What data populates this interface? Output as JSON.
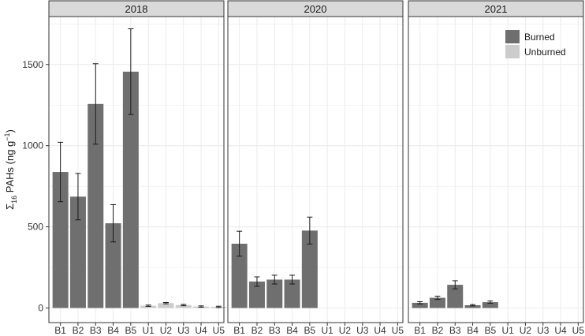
{
  "chart_data": {
    "type": "bar",
    "facets": [
      "2018",
      "2020",
      "2021"
    ],
    "categories": [
      "B1",
      "B2",
      "B3",
      "B4",
      "B5",
      "U1",
      "U2",
      "U3",
      "U4",
      "U5"
    ],
    "ylabel": "Σ16 PAHs (ng g−1)",
    "ylabel_parts": {
      "symbol": "Σ",
      "sub": "16",
      "mid": " PAHs (ng g",
      "sup": "−1",
      "end": ")"
    },
    "ylim": [
      0,
      1780
    ],
    "yticks": [
      0,
      500,
      1000,
      1500
    ],
    "grid": true,
    "legend_position": "top-right",
    "legend": [
      {
        "name": "Burned",
        "color": "#6f6f6f"
      },
      {
        "name": "Unburned",
        "color": "#cccccc"
      }
    ],
    "panels": [
      {
        "facet": "2018",
        "values": [
          838,
          686,
          1257,
          522,
          1456,
          14,
          30,
          18,
          9,
          7
        ],
        "errors": [
          183,
          143,
          248,
          115,
          264,
          4,
          4,
          4,
          4,
          4
        ]
      },
      {
        "facet": "2020",
        "values": [
          396,
          163,
          175,
          175,
          477,
          null,
          null,
          null,
          null,
          null
        ],
        "errors": [
          77,
          29,
          27,
          27,
          83,
          null,
          null,
          null,
          null,
          null
        ]
      },
      {
        "facet": "2021",
        "values": [
          32,
          63,
          143,
          17,
          36,
          null,
          null,
          null,
          null,
          null
        ],
        "errors": [
          7,
          10,
          25,
          4,
          7,
          null,
          null,
          null,
          null,
          null
        ]
      }
    ]
  },
  "colors": {
    "burned": "#6f6f6f",
    "unburned": "#cccccc",
    "panel_background": "#ffffff",
    "grid": "#ebebeb",
    "strip_background": "#d9d9d9",
    "border": "#333333"
  }
}
